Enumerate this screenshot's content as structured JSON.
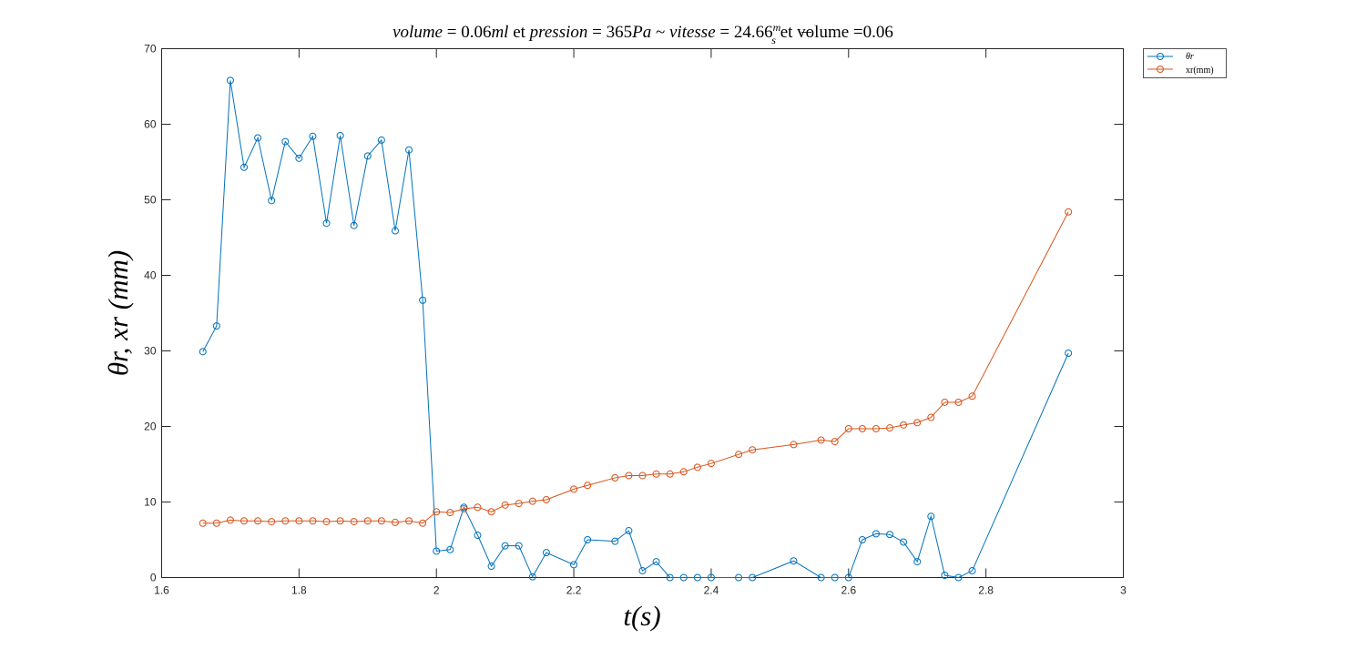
{
  "chart_data": {
    "type": "line",
    "title": "volume = 0.06ml et pression = 365Pa ~ vitesse = 24.66 m/s et volume =0.06",
    "title_parts": {
      "t1": "volume",
      "t2": " = 0.06",
      "t3": "ml",
      "t4": " et ",
      "t5": "pression",
      "t6": " = 365",
      "t7": "Pa",
      "t8": " ~ ",
      "t9": "vitesse",
      "t10": " = 24.66",
      "frac_num": "m",
      "frac_den": "s",
      "t11": " et volume =0.06"
    },
    "xlabel": "t(s)",
    "ylabel": "θr, xr (mm)",
    "xlim": [
      1.6,
      3
    ],
    "ylim": [
      0,
      70
    ],
    "xticks": [
      1.6,
      1.8,
      2,
      2.2,
      2.4,
      2.6,
      2.8,
      3
    ],
    "xtick_labels": [
      "1.6",
      "1.8",
      "2",
      "2.2",
      "2.4",
      "2.6",
      "2.8",
      "3"
    ],
    "yticks": [
      0,
      10,
      20,
      30,
      40,
      50,
      60,
      70
    ],
    "ytick_labels": [
      "0",
      "10",
      "20",
      "30",
      "40",
      "50",
      "60",
      "70"
    ],
    "grid": false,
    "legend_position": "outside-top-right",
    "x": [
      1.66,
      1.68,
      1.7,
      1.72,
      1.74,
      1.76,
      1.78,
      1.8,
      1.82,
      1.84,
      1.86,
      1.88,
      1.9,
      1.92,
      1.94,
      1.96,
      1.98,
      2.0,
      2.02,
      2.04,
      2.06,
      2.08,
      2.1,
      2.12,
      2.14,
      2.16,
      2.2,
      2.22,
      2.26,
      2.28,
      2.3,
      2.32,
      2.34,
      2.36,
      2.38,
      2.4,
      2.44,
      2.46,
      2.52,
      2.56,
      2.58,
      2.6,
      2.62,
      2.64,
      2.66,
      2.68,
      2.7,
      2.72,
      2.74,
      2.76,
      2.78,
      2.92
    ],
    "series": [
      {
        "name": "θr",
        "color": "#0072bd",
        "values": [
          29.9,
          33.3,
          65.8,
          54.3,
          58.2,
          49.9,
          57.7,
          55.5,
          58.4,
          46.9,
          58.5,
          46.6,
          55.8,
          57.9,
          45.9,
          56.6,
          36.7,
          3.5,
          3.7,
          9.3,
          5.6,
          1.5,
          4.2,
          4.2,
          0.1,
          3.3,
          1.7,
          5.0,
          4.8,
          6.2,
          0.9,
          2.1,
          0.0,
          0.0,
          0.0,
          0.0,
          0.0,
          0.0,
          2.2,
          0.0,
          0.0,
          0.0,
          5.0,
          5.8,
          5.7,
          4.7,
          2.1,
          8.1,
          0.3,
          0.0,
          0.9,
          29.7
        ]
      },
      {
        "name": "xr(mm)",
        "color": "#d95319",
        "values": [
          7.2,
          7.2,
          7.6,
          7.5,
          7.5,
          7.4,
          7.5,
          7.5,
          7.5,
          7.4,
          7.5,
          7.4,
          7.5,
          7.5,
          7.3,
          7.5,
          7.2,
          8.7,
          8.6,
          9.1,
          9.3,
          8.7,
          9.6,
          9.8,
          10.1,
          10.3,
          11.7,
          12.2,
          13.2,
          13.5,
          13.5,
          13.7,
          13.7,
          14.0,
          14.6,
          15.1,
          16.3,
          16.9,
          17.6,
          18.2,
          18.0,
          19.7,
          19.7,
          19.7,
          19.8,
          20.2,
          20.5,
          21.2,
          23.2,
          23.2,
          24.0,
          48.4
        ]
      }
    ]
  }
}
